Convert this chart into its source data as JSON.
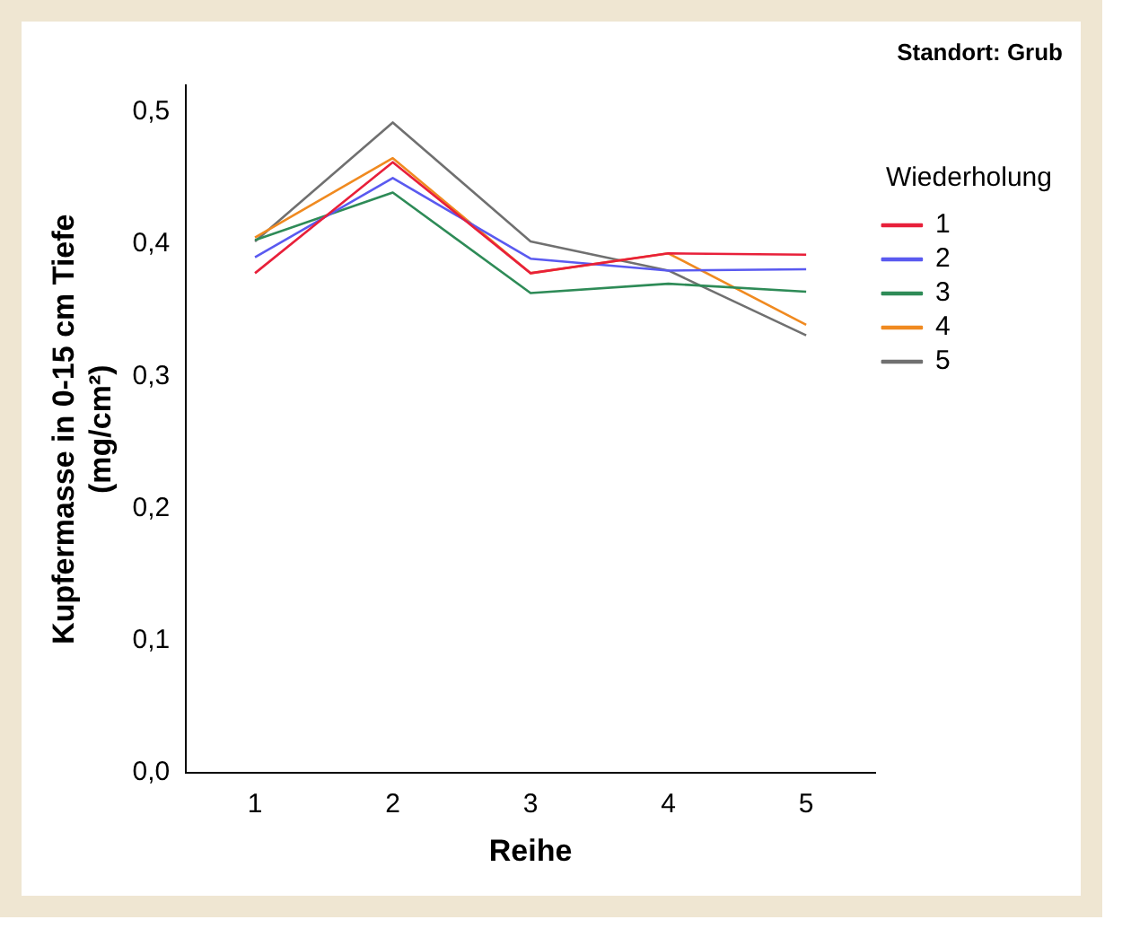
{
  "chart_data": {
    "type": "line",
    "title": "Standort: Grub",
    "xlabel": "Reihe",
    "ylabel": "Kupfermasse in 0-15 cm Tiefe (mg/cm²)",
    "legend_title": "Wiederholung",
    "categories": [
      "1",
      "2",
      "3",
      "4",
      "5"
    ],
    "series": [
      {
        "name": "1",
        "color": "#e8203a",
        "values": [
          0.378,
          0.462,
          0.378,
          0.393,
          0.392
        ]
      },
      {
        "name": "2",
        "color": "#5a5af0",
        "values": [
          0.39,
          0.45,
          0.389,
          0.38,
          0.381
        ]
      },
      {
        "name": "3",
        "color": "#2e8b57",
        "values": [
          0.403,
          0.439,
          0.363,
          0.37,
          0.364
        ]
      },
      {
        "name": "4",
        "color": "#f08a20",
        "values": [
          0.405,
          0.465,
          0.378,
          0.393,
          0.339
        ]
      },
      {
        "name": "5",
        "color": "#707070",
        "values": [
          0.402,
          0.492,
          0.402,
          0.38,
          0.331
        ]
      }
    ],
    "ylim": [
      0,
      0.52
    ],
    "yticks": [
      {
        "value": 0,
        "label": "0,0"
      },
      {
        "value": 0.1,
        "label": "0,1"
      },
      {
        "value": 0.2,
        "label": "0,2"
      },
      {
        "value": 0.3,
        "label": "0,3"
      },
      {
        "value": 0.4,
        "label": "0,4"
      },
      {
        "value": 0.5,
        "label": "0,5"
      }
    ],
    "grid": false,
    "legend": "right",
    "marker": "none",
    "line_style": "solid"
  }
}
